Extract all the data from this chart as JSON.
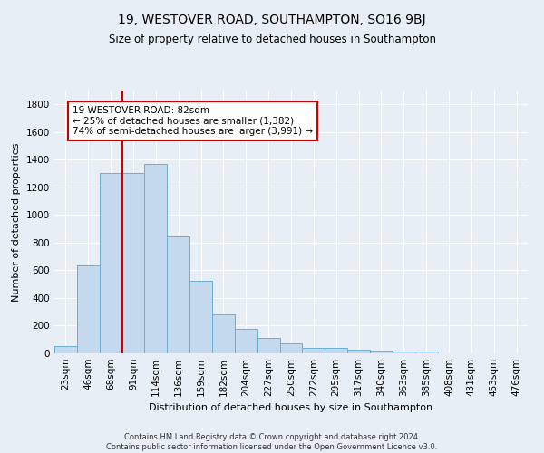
{
  "title": "19, WESTOVER ROAD, SOUTHAMPTON, SO16 9BJ",
  "subtitle": "Size of property relative to detached houses in Southampton",
  "xlabel": "Distribution of detached houses by size in Southampton",
  "ylabel": "Number of detached properties",
  "categories": [
    "23sqm",
    "46sqm",
    "68sqm",
    "91sqm",
    "114sqm",
    "136sqm",
    "159sqm",
    "182sqm",
    "204sqm",
    "227sqm",
    "250sqm",
    "272sqm",
    "295sqm",
    "317sqm",
    "340sqm",
    "363sqm",
    "385sqm",
    "408sqm",
    "431sqm",
    "453sqm",
    "476sqm"
  ],
  "values": [
    55,
    638,
    1305,
    1305,
    1370,
    845,
    525,
    285,
    175,
    110,
    70,
    40,
    40,
    28,
    22,
    12,
    12,
    0,
    0,
    0,
    0
  ],
  "bar_color": "#c5d9ee",
  "bar_edge_color": "#6baed6",
  "vline_color": "#cc0000",
  "vline_x": 2.5,
  "annotation_text": "19 WESTOVER ROAD: 82sqm\n← 25% of detached houses are smaller (1,382)\n74% of semi-detached houses are larger (3,991) →",
  "annotation_box_color": "white",
  "annotation_box_edge": "#cc0000",
  "ylim": [
    0,
    1900
  ],
  "yticks": [
    0,
    200,
    400,
    600,
    800,
    1000,
    1200,
    1400,
    1600,
    1800
  ],
  "bg_color": "#e8eef5",
  "plot_bg_color": "#e8eef5",
  "grid_color": "white",
  "footer_text": "Contains HM Land Registry data © Crown copyright and database right 2024.\nContains public sector information licensed under the Open Government Licence v3.0.",
  "title_fontsize": 10,
  "subtitle_fontsize": 8.5,
  "xlabel_fontsize": 8,
  "ylabel_fontsize": 8,
  "tick_fontsize": 7.5
}
